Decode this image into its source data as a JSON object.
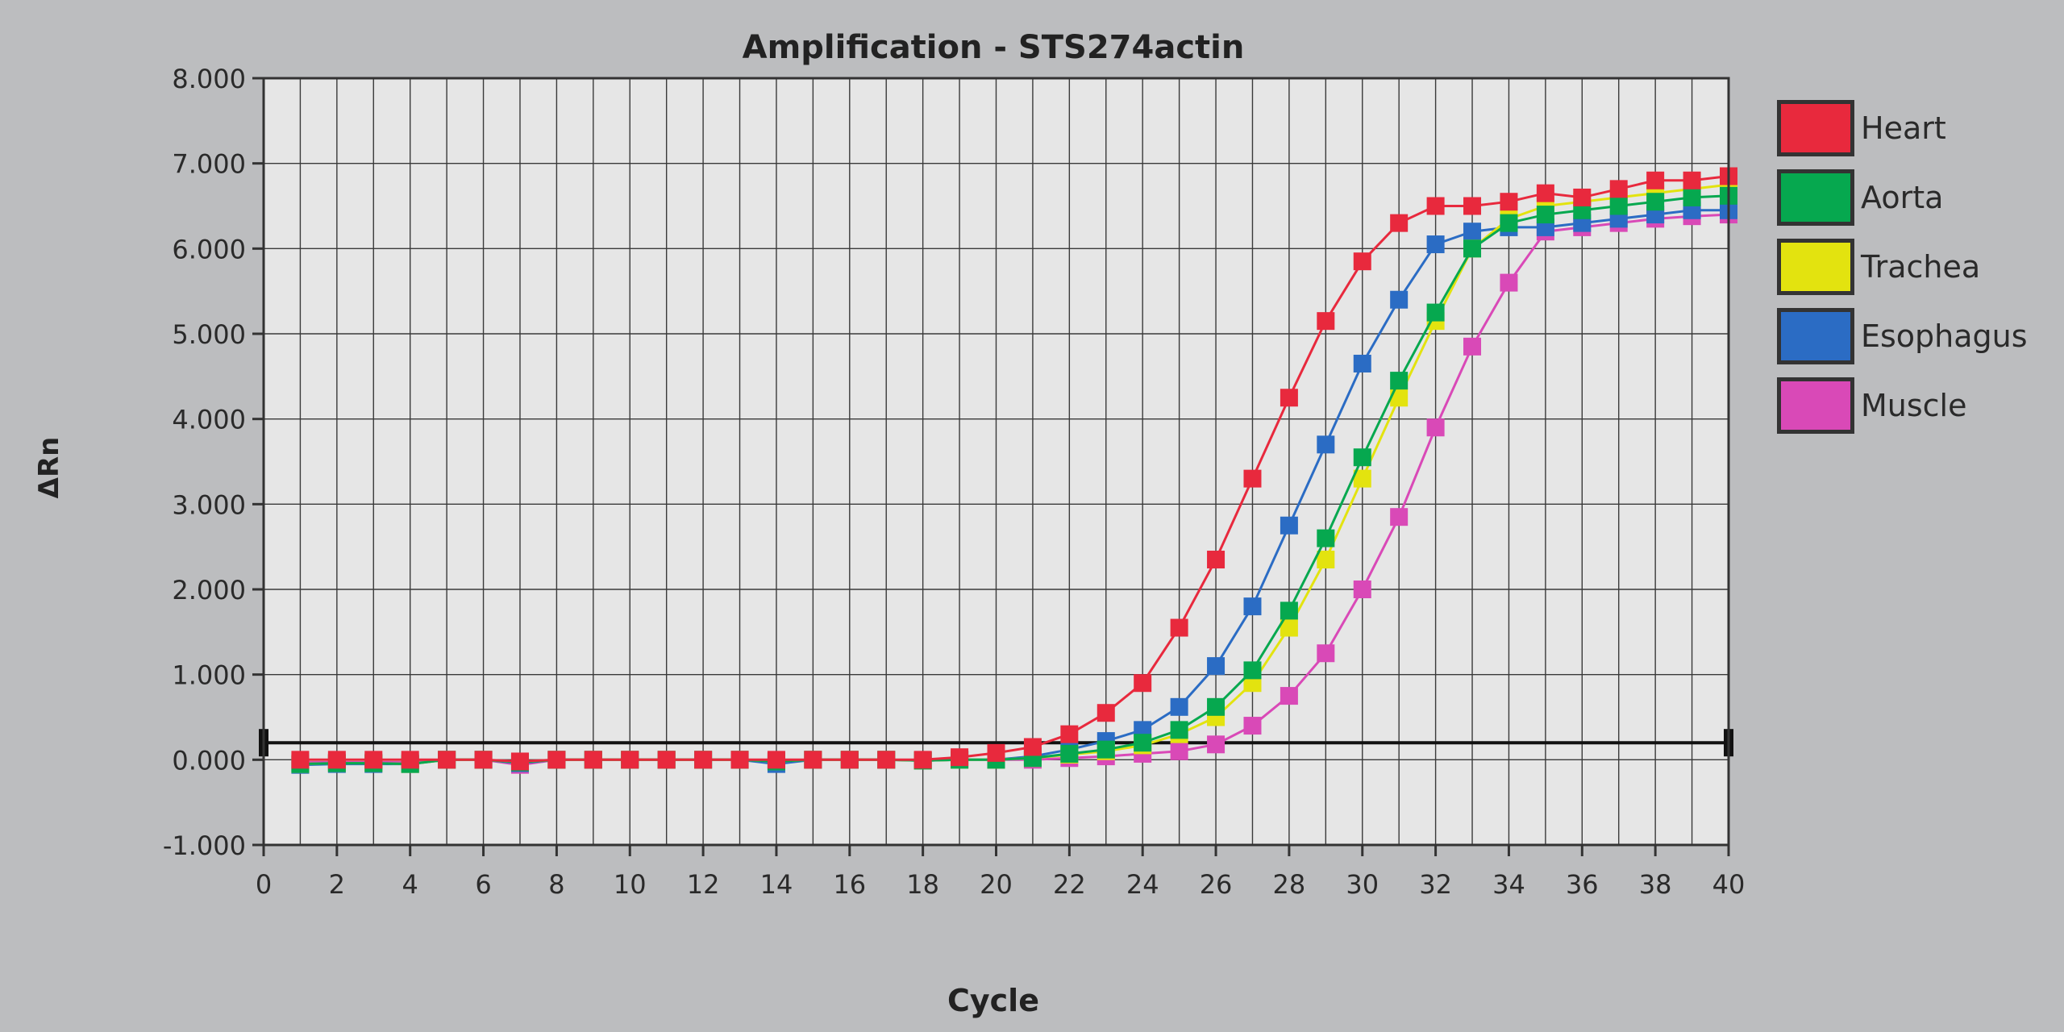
{
  "chart_data": {
    "type": "line",
    "title": "Amplification - STS274actin",
    "xlabel": "Cycle",
    "ylabel": "ΔRn",
    "xlim": [
      0,
      40
    ],
    "ylim": [
      -1.0,
      8.0
    ],
    "x_ticks": [
      0,
      2,
      4,
      6,
      8,
      10,
      12,
      14,
      16,
      18,
      20,
      22,
      24,
      26,
      28,
      30,
      32,
      34,
      36,
      38,
      40
    ],
    "x_tick_labels": [
      "0",
      "2",
      "4",
      "6",
      "8",
      "10",
      "12",
      "14",
      "16",
      "18",
      "20",
      "22",
      "24",
      "26",
      "28",
      "30",
      "32",
      "34",
      "36",
      "38",
      "40"
    ],
    "y_ticks": [
      -1,
      0,
      1,
      2,
      3,
      4,
      5,
      6,
      7,
      8
    ],
    "y_tick_labels": [
      "-1.000",
      "0.000",
      "1.000",
      "2.000",
      "3.000",
      "4.000",
      "5.000",
      "6.000",
      "7.000",
      "8.000"
    ],
    "grid": true,
    "legend_position": "right",
    "threshold": 0.2,
    "x": [
      1,
      2,
      3,
      4,
      5,
      6,
      7,
      8,
      9,
      10,
      11,
      12,
      13,
      14,
      15,
      16,
      17,
      18,
      19,
      20,
      21,
      22,
      23,
      24,
      25,
      26,
      27,
      28,
      29,
      30,
      31,
      32,
      33,
      34,
      35,
      36,
      37,
      38,
      39,
      40
    ],
    "series": [
      {
        "name": "Heart",
        "color": "#e8293d",
        "values": [
          0,
          0,
          0,
          0,
          0,
          0,
          -0.02,
          0,
          0,
          0,
          0,
          0,
          0,
          0,
          0,
          0,
          0,
          0,
          0.03,
          0.08,
          0.15,
          0.3,
          0.55,
          0.9,
          1.55,
          2.35,
          3.3,
          4.25,
          5.15,
          5.85,
          6.3,
          6.5,
          6.5,
          6.55,
          6.65,
          6.6,
          6.7,
          6.8,
          6.8,
          6.85
        ]
      },
      {
        "name": "Aorta",
        "color": "#06a84f",
        "values": [
          -0.05,
          -0.04,
          -0.04,
          -0.05,
          0,
          0,
          -0.03,
          0,
          0,
          0,
          0,
          0,
          0,
          -0.02,
          0,
          0,
          0,
          -0.01,
          0,
          0,
          0.02,
          0.07,
          0.12,
          0.2,
          0.35,
          0.62,
          1.05,
          1.75,
          2.6,
          3.55,
          4.45,
          5.25,
          6.0,
          6.3,
          6.4,
          6.45,
          6.5,
          6.55,
          6.6,
          6.62
        ]
      },
      {
        "name": "Trachea",
        "color": "#e3e30f",
        "values": [
          -0.05,
          -0.04,
          -0.04,
          -0.05,
          0,
          0,
          -0.03,
          0,
          0,
          0,
          0,
          0,
          0,
          -0.02,
          0,
          0,
          0,
          -0.01,
          0,
          0,
          0.02,
          0.06,
          0.1,
          0.17,
          0.3,
          0.5,
          0.9,
          1.55,
          2.35,
          3.3,
          4.25,
          5.15,
          6.0,
          6.35,
          6.5,
          6.55,
          6.6,
          6.65,
          6.7,
          6.75
        ]
      },
      {
        "name": "Esophagus",
        "color": "#2b6cc4",
        "values": [
          -0.06,
          -0.05,
          -0.05,
          -0.05,
          0,
          0,
          -0.04,
          0,
          0,
          0,
          0,
          0,
          0,
          -0.05,
          0,
          0,
          0,
          -0.01,
          0,
          0,
          0.04,
          0.12,
          0.22,
          0.35,
          0.62,
          1.1,
          1.8,
          2.75,
          3.7,
          4.65,
          5.4,
          6.05,
          6.2,
          6.25,
          6.25,
          6.3,
          6.35,
          6.4,
          6.45,
          6.45
        ]
      },
      {
        "name": "Muscle",
        "color": "#d949b7",
        "values": [
          -0.03,
          -0.03,
          -0.03,
          -0.03,
          0,
          0,
          -0.06,
          0,
          0,
          0,
          0,
          0,
          0,
          -0.02,
          0,
          0,
          0,
          -0.01,
          0,
          0,
          0,
          0.02,
          0.04,
          0.07,
          0.1,
          0.18,
          0.4,
          0.75,
          1.25,
          2.0,
          2.85,
          3.9,
          4.85,
          5.6,
          6.2,
          6.25,
          6.3,
          6.35,
          6.38,
          6.4
        ]
      }
    ]
  }
}
